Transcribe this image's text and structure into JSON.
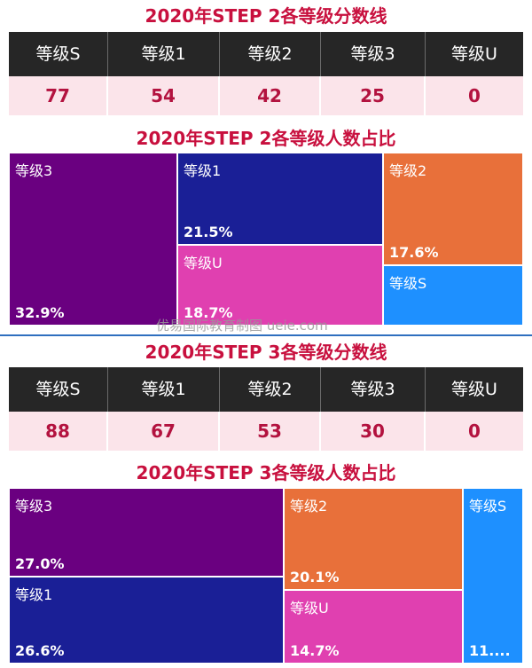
{
  "colors": {
    "title": "#c8103e",
    "header_bg": "#262626",
    "value_bg": "#fbe4ea",
    "value_text": "#b3123f",
    "divider": "#2f6fbf"
  },
  "watermark": "优易国际教育制图 ueie.com",
  "chart_data": [
    {
      "type": "table",
      "title": "2020年STEP 2各等级分数线",
      "columns": [
        "等级S",
        "等级1",
        "等级2",
        "等级3",
        "等级U"
      ],
      "values": [
        "77",
        "54",
        "42",
        "25",
        "0"
      ]
    },
    {
      "type": "treemap",
      "title": "2020年STEP 2各等级人数占比",
      "series": [
        {
          "name": "等级3",
          "value": 32.9,
          "label": "32.9%",
          "color": "#6a0080"
        },
        {
          "name": "等级1",
          "value": 21.5,
          "label": "21.5%",
          "color": "#1a1f96"
        },
        {
          "name": "等级U",
          "value": 18.7,
          "label": "18.7%",
          "color": "#e040b0"
        },
        {
          "name": "等级2",
          "value": 17.6,
          "label": "17.6%",
          "color": "#e8703a"
        },
        {
          "name": "等级S",
          "value": null,
          "label": "",
          "color": "#1e90ff"
        }
      ]
    },
    {
      "type": "table",
      "title": "2020年STEP 3各等级分数线",
      "columns": [
        "等级S",
        "等级1",
        "等级2",
        "等级3",
        "等级U"
      ],
      "values": [
        "88",
        "67",
        "53",
        "30",
        "0"
      ]
    },
    {
      "type": "treemap",
      "title": "2020年STEP 3各等级人数占比",
      "series": [
        {
          "name": "等级3",
          "value": 27.0,
          "label": "27.0%",
          "color": "#6a0080"
        },
        {
          "name": "等级1",
          "value": 26.6,
          "label": "26.6%",
          "color": "#1a1f96"
        },
        {
          "name": "等级2",
          "value": 20.1,
          "label": "20.1%",
          "color": "#e8703a"
        },
        {
          "name": "等级U",
          "value": 14.7,
          "label": "14.7%",
          "color": "#e040b0"
        },
        {
          "name": "等级S",
          "value": null,
          "label": "11....",
          "color": "#1e90ff"
        }
      ]
    }
  ]
}
